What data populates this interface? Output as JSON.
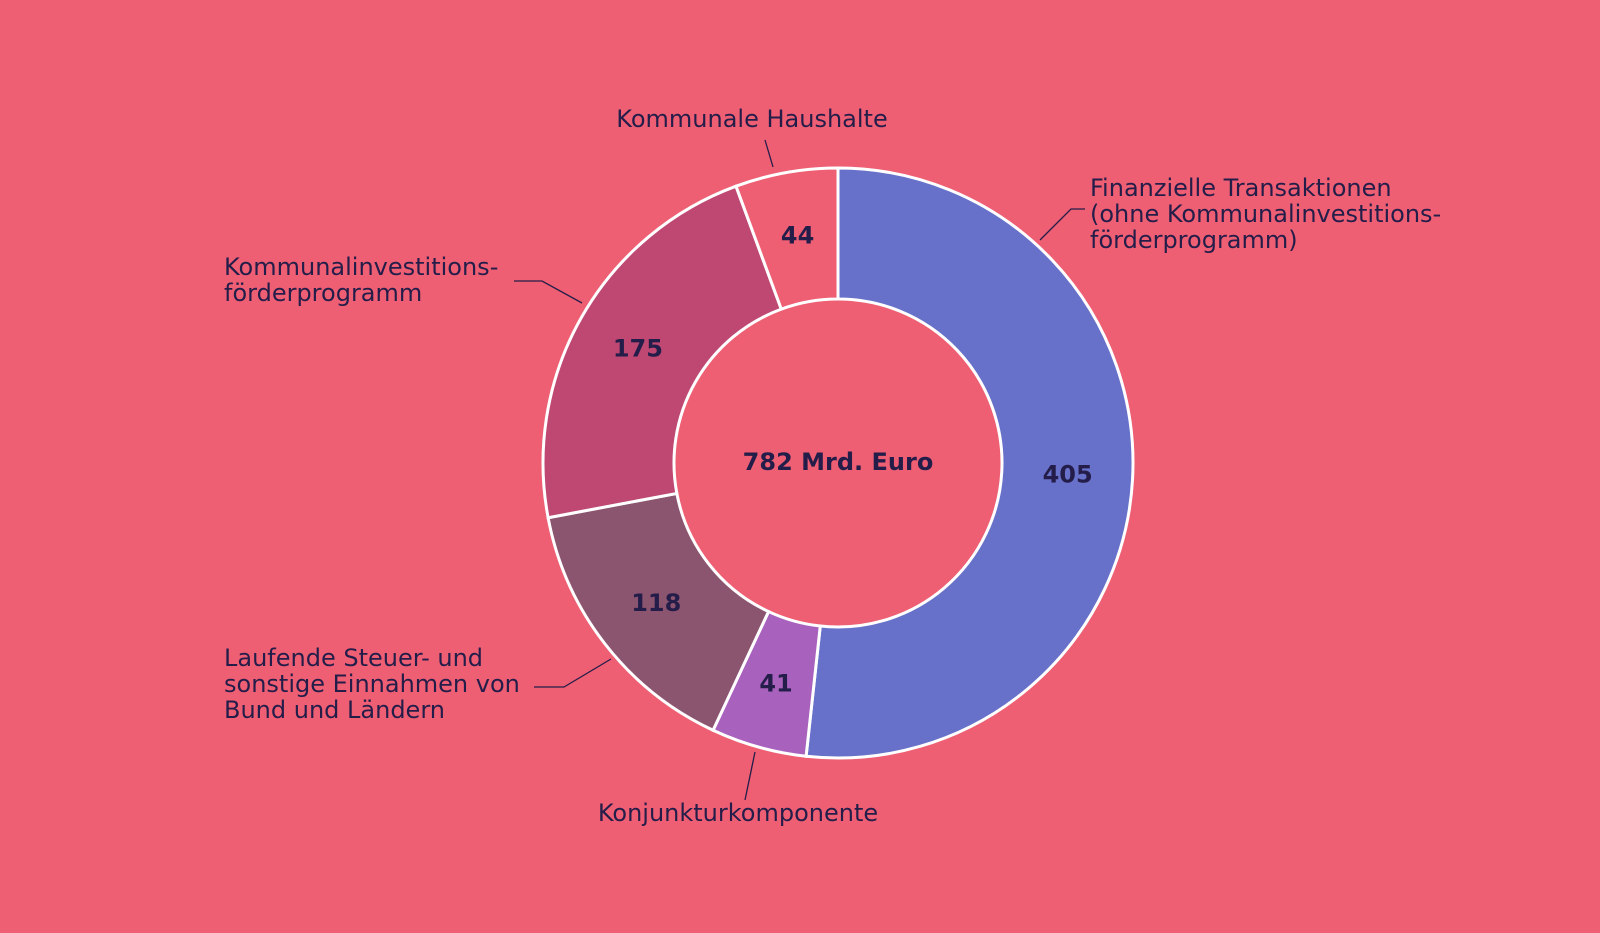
{
  "chart_data": {
    "type": "donut",
    "center_label": "782 Mrd. Euro",
    "categories": [
      [
        "Finanzielle Transaktionen",
        "(ohne Kommunalinvestitions-",
        "förderprogramm)"
      ],
      [
        "Konjunkturkomponente"
      ],
      [
        "Laufende Steuer- und",
        "sonstige Einnahmen von",
        "Bund und Ländern"
      ],
      [
        "Kommunalinvestitions-",
        "förderprogramm"
      ],
      [
        "Kommunale Haushalte"
      ]
    ],
    "values": [
      405,
      41,
      118,
      175,
      44
    ],
    "colors": [
      "#6771c9",
      "#a862bd",
      "#8b546f",
      "#bf4872",
      "#ee5f73"
    ]
  }
}
